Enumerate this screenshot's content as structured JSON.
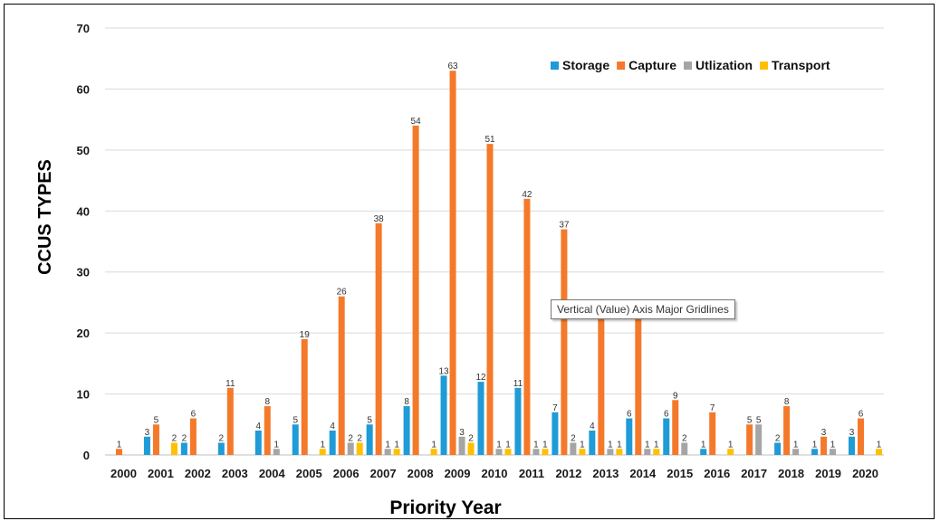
{
  "chart_data": {
    "type": "bar",
    "title": "",
    "xlabel": "Priority Year",
    "ylabel": "CCUS TYPES",
    "ylim": [
      0,
      70
    ],
    "yticks": [
      0,
      10,
      20,
      30,
      40,
      50,
      60,
      70
    ],
    "grid": true,
    "legend_position": "top-right",
    "categories": [
      "2000",
      "2001",
      "2002",
      "2003",
      "2004",
      "2005",
      "2006",
      "2007",
      "2008",
      "2009",
      "2010",
      "2011",
      "2012",
      "2013",
      "2014",
      "2015",
      "2016",
      "2017",
      "2018",
      "2019",
      "2020"
    ],
    "series": [
      {
        "name": "Storage",
        "color": "#1f9bd7",
        "values": [
          0,
          3,
          2,
          2,
          4,
          5,
          4,
          5,
          8,
          13,
          12,
          11,
          7,
          4,
          6,
          6,
          1,
          0,
          2,
          1,
          3
        ]
      },
      {
        "name": "Capture",
        "color": "#f4792a",
        "values": [
          1,
          5,
          6,
          11,
          8,
          19,
          26,
          38,
          54,
          63,
          51,
          42,
          37,
          23,
          23,
          9,
          7,
          5,
          8,
          3,
          6
        ]
      },
      {
        "name": "Utlization",
        "color": "#a5a5a5",
        "values": [
          0,
          0,
          0,
          0,
          1,
          0,
          2,
          1,
          0,
          3,
          1,
          1,
          2,
          1,
          1,
          2,
          0,
          5,
          1,
          1,
          0
        ]
      },
      {
        "name": "Transport",
        "color": "#ffc000",
        "values": [
          0,
          2,
          0,
          0,
          0,
          1,
          2,
          1,
          1,
          2,
          1,
          1,
          1,
          1,
          1,
          0,
          1,
          0,
          0,
          0,
          1
        ]
      }
    ]
  },
  "tooltip": {
    "text": "Vertical (Value) Axis Major Gridlines"
  }
}
